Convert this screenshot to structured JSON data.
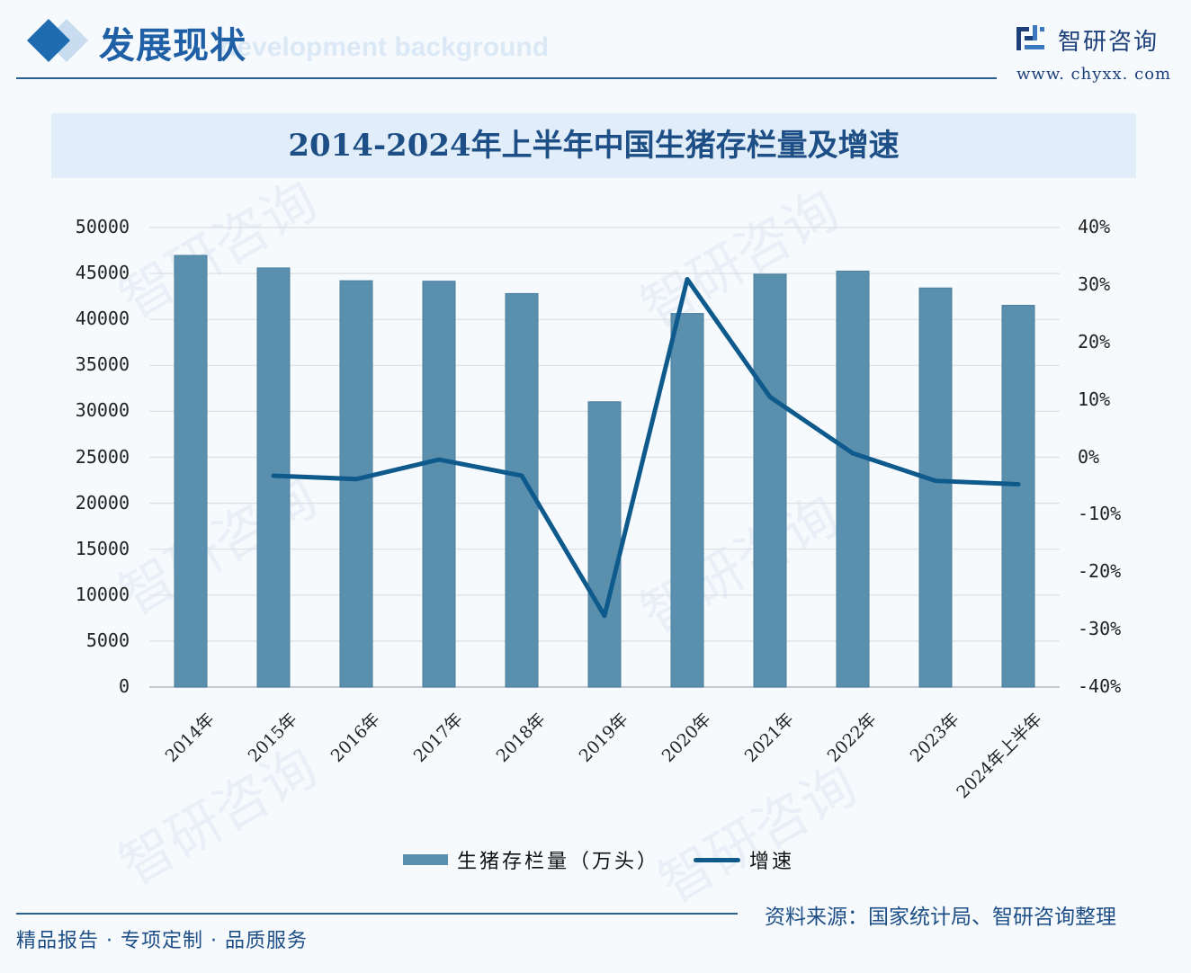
{
  "header": {
    "section_title": "发展现状",
    "section_subtitle": "development background",
    "logo_name": "智研咨询",
    "logo_url": "www. chyxx. com"
  },
  "chart_title": "2014-2024年上半年中国生猪存栏量及增速",
  "legend": {
    "bar_label": "生猪存栏量（万头）",
    "line_label": "增速"
  },
  "footer": {
    "tagline": "精品报告 · 专项定制 · 品质服务",
    "source": "资料来源：国家统计局、智研咨询整理"
  },
  "watermark": "智研咨询",
  "colors": {
    "bar": "#5a8fae",
    "line": "#0f5a8c",
    "title": "#1d4f86",
    "band": "#e1edf8"
  },
  "chart_data": {
    "type": "bar",
    "title": "2014-2024年上半年中国生猪存栏量及增速",
    "categories": [
      "2014年",
      "2015年",
      "2016年",
      "2017年",
      "2018年",
      "2019年",
      "2020年",
      "2021年",
      "2022年",
      "2023年",
      "2024年上半年"
    ],
    "series": [
      {
        "name": "生猪存栏量（万头）",
        "type": "bar",
        "axis": "left",
        "values": [
          46967,
          45603,
          44209,
          44159,
          42817,
          31041,
          40650,
          44922,
          45256,
          43422,
          41533
        ]
      },
      {
        "name": "增速",
        "type": "line",
        "axis": "right",
        "unit": "%",
        "values": [
          null,
          -3.2,
          -3.8,
          -0.4,
          -3.2,
          -27.6,
          31.0,
          10.5,
          0.7,
          -4.1,
          -4.7
        ]
      }
    ],
    "y_left": {
      "ticks": [
        "0",
        "5000",
        "10000",
        "15000",
        "20000",
        "25000",
        "30000",
        "35000",
        "40000",
        "45000",
        "50000"
      ],
      "ylim": [
        0,
        50000
      ]
    },
    "y_right": {
      "ticks": [
        "-40%",
        "-30%",
        "-20%",
        "-10%",
        "0%",
        "10%",
        "20%",
        "30%",
        "40%"
      ],
      "ylim": [
        -40,
        40
      ]
    },
    "xlabel": "",
    "ylabel": "",
    "grid": true,
    "legend_position": "bottom"
  }
}
